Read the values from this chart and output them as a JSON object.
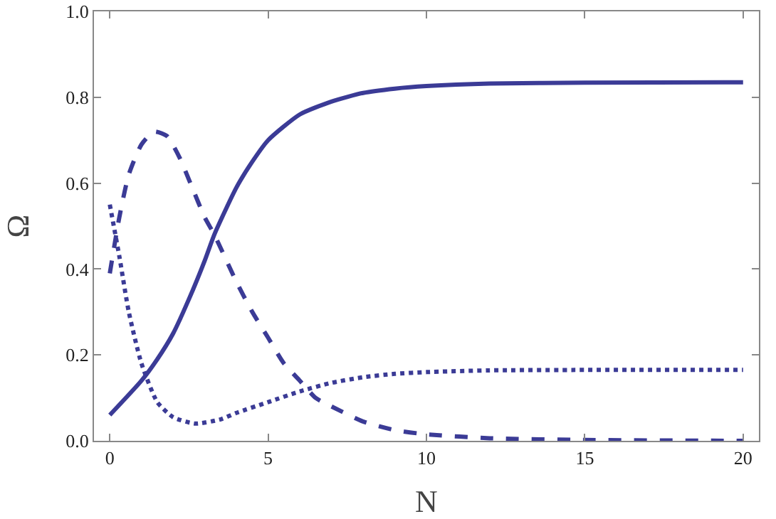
{
  "chart_data": {
    "type": "line",
    "xlabel": "N",
    "ylabel": "Ω",
    "xlim": [
      -0.5,
      20.5
    ],
    "ylim": [
      0,
      1
    ],
    "xticks": [
      0,
      5,
      10,
      15,
      20
    ],
    "yticks": [
      {
        "value": 0,
        "label": "0.0"
      },
      {
        "value": 0.2,
        "label": "0.2"
      },
      {
        "value": 0.4,
        "label": "0.4"
      },
      {
        "value": 0.6,
        "label": "0.6"
      },
      {
        "value": 0.8,
        "label": "0.8"
      },
      {
        "value": 1,
        "label": "1.0"
      }
    ],
    "marker": "none",
    "series": [
      {
        "color": "#3b3b96",
        "line_style": "solid",
        "x": [
          0,
          1,
          1.5,
          2,
          2.5,
          3,
          3.3,
          4,
          4.5,
          5,
          6,
          7,
          8,
          9,
          10,
          12,
          15,
          20
        ],
        "values": [
          0.06,
          0.14,
          0.19,
          0.25,
          0.33,
          0.42,
          0.48,
          0.59,
          0.65,
          0.7,
          0.76,
          0.79,
          0.81,
          0.82,
          0.826,
          0.832,
          0.834,
          0.835
        ]
      },
      {
        "color": "#3b3b96",
        "line_style": "dashed",
        "x": [
          0,
          0.3,
          0.6,
          1,
          1.4,
          1.8,
          2.2,
          2.6,
          3,
          3.3,
          4,
          4.5,
          5,
          5.5,
          6,
          6.5,
          7,
          8,
          9,
          10,
          12,
          15,
          20
        ],
        "values": [
          0.39,
          0.52,
          0.62,
          0.69,
          0.72,
          0.71,
          0.66,
          0.59,
          0.52,
          0.48,
          0.37,
          0.3,
          0.24,
          0.18,
          0.14,
          0.1,
          0.08,
          0.045,
          0.025,
          0.015,
          0.006,
          0.002,
          0
        ]
      },
      {
        "color": "#3b3b96",
        "line_style": "dotted",
        "x": [
          0,
          0.3,
          0.6,
          1,
          1.5,
          2,
          2.7,
          3.5,
          4,
          5,
          6,
          7,
          8,
          9,
          10,
          12,
          15,
          20
        ],
        "values": [
          0.55,
          0.43,
          0.3,
          0.18,
          0.09,
          0.055,
          0.04,
          0.05,
          0.065,
          0.09,
          0.115,
          0.135,
          0.148,
          0.156,
          0.16,
          0.164,
          0.165,
          0.165
        ]
      }
    ]
  }
}
